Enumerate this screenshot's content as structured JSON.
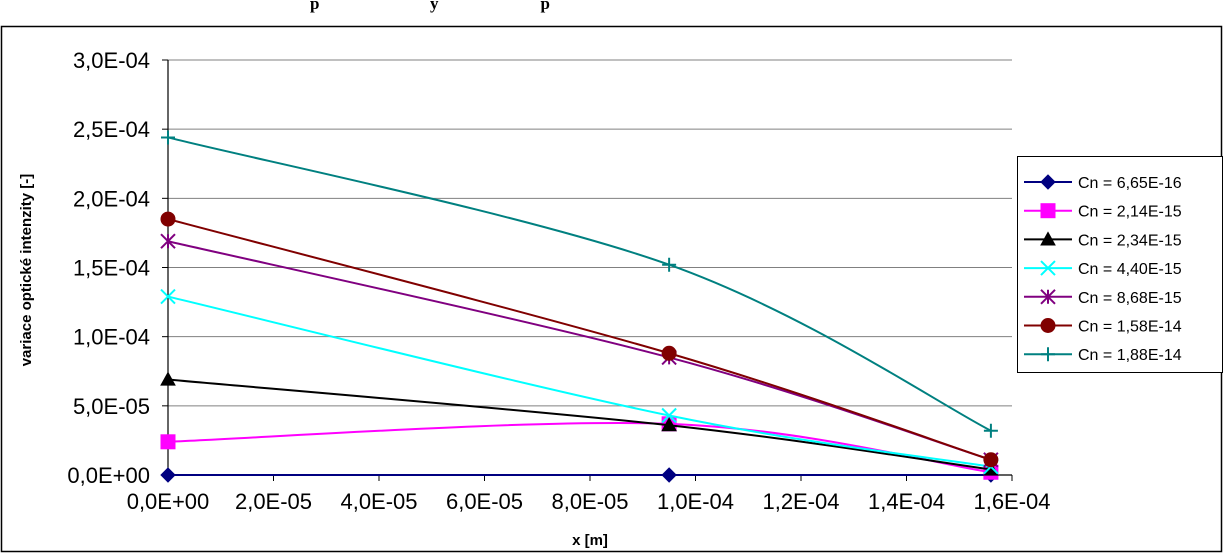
{
  "chart_data": {
    "type": "line",
    "title_partial": "p                          y                        p",
    "xlabel": "x [m]",
    "ylabel": "variace optické intenzity [-]",
    "xlim": [
      0,
      0.00016
    ],
    "ylim": [
      0,
      0.0003
    ],
    "x_ticks": [
      "0,0E+00",
      "2,0E-05",
      "4,0E-05",
      "6,0E-05",
      "8,0E-05",
      "1,0E-04",
      "1,2E-04",
      "1,4E-04",
      "1,6E-04"
    ],
    "y_ticks": [
      "0,0E+00",
      "5,0E-05",
      "1,0E-04",
      "1,5E-04",
      "2,0E-04",
      "2,5E-04",
      "3,0E-04"
    ],
    "grid": "horizontal",
    "legend_position": "right",
    "x": [
      0,
      9.5e-05,
      0.000156
    ],
    "series": [
      {
        "name": "Cn = 6,65E-16",
        "values": [
          0,
          0,
          0
        ],
        "color": "#000080",
        "marker": "diamond"
      },
      {
        "name": "Cn = 2,14E-15",
        "values": [
          2.4e-05,
          3.7e-05,
          2e-06
        ],
        "color": "#ff00ff",
        "marker": "square"
      },
      {
        "name": "Cn = 2,34E-15",
        "values": [
          6.9e-05,
          3.6e-05,
          4e-06
        ],
        "color": "#000000",
        "marker": "triangle"
      },
      {
        "name": "Cn = 4,40E-15",
        "values": [
          0.000129,
          4.3e-05,
          6e-06
        ],
        "color": "#00ffff",
        "marker": "x"
      },
      {
        "name": "Cn = 8,68E-15",
        "values": [
          0.000169,
          8.5e-05,
          1.1e-05
        ],
        "color": "#800080",
        "marker": "star"
      },
      {
        "name": "Cn = 1,58E-14",
        "values": [
          0.000185,
          8.8e-05,
          1.1e-05
        ],
        "color": "#800000",
        "marker": "circle"
      },
      {
        "name": "Cn = 1,88E-14",
        "values": [
          0.000244,
          0.000152,
          3.2e-05
        ],
        "color": "#008080",
        "marker": "plus"
      }
    ]
  }
}
